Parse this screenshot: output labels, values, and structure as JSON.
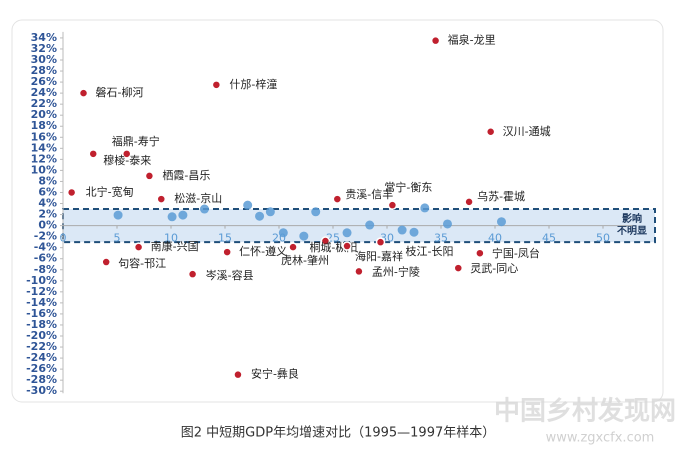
{
  "chart_data": {
    "type": "scatter",
    "caption": "图2  中短期GDP年均增速对比（1995—1997年样本）",
    "watermark": [
      "中国乡村发现网",
      "www.zgxcfx.com"
    ],
    "xlim": [
      0,
      52
    ],
    "ylim": [
      -30,
      34
    ],
    "xticks": [
      0,
      5,
      10,
      15,
      20,
      25,
      30,
      35,
      40,
      45,
      50
    ],
    "yticks": [
      {
        "value": 34,
        "label": "34%"
      },
      {
        "value": 32,
        "label": "32%"
      },
      {
        "value": 30,
        "label": "30%"
      },
      {
        "value": 28,
        "label": "28%"
      },
      {
        "value": 26,
        "label": "26%"
      },
      {
        "value": 24,
        "label": "24%"
      },
      {
        "value": 22,
        "label": "22%"
      },
      {
        "value": 20,
        "label": "20%"
      },
      {
        "value": 18,
        "label": "18%"
      },
      {
        "value": 16,
        "label": "16%"
      },
      {
        "value": 14,
        "label": "14%"
      },
      {
        "value": 12,
        "label": "12%"
      },
      {
        "value": 10,
        "label": "10%"
      },
      {
        "value": 8,
        "label": "8%"
      },
      {
        "value": 6,
        "label": "6%"
      },
      {
        "value": 4,
        "label": "4%"
      },
      {
        "value": 2,
        "label": "2%"
      },
      {
        "value": 0,
        "label": "0%"
      },
      {
        "value": -2,
        "label": "-2%"
      },
      {
        "value": -4,
        "label": "-4%"
      },
      {
        "value": -6,
        "label": "-6%"
      },
      {
        "value": -8,
        "label": "-8%"
      },
      {
        "value": -10,
        "label": "-10%"
      },
      {
        "value": -12,
        "label": "-12%"
      },
      {
        "value": -14,
        "label": "-14%"
      },
      {
        "value": -16,
        "label": "-16%"
      },
      {
        "value": -18,
        "label": "-18%"
      },
      {
        "value": -20,
        "label": "-20%"
      },
      {
        "value": -22,
        "label": "-22%"
      },
      {
        "value": -24,
        "label": "-24%"
      },
      {
        "value": -26,
        "label": "-26%"
      },
      {
        "value": -28,
        "label": "-28%"
      },
      {
        "value": -30,
        "label": "-30%"
      }
    ],
    "band": {
      "label": [
        "影响",
        "不明显"
      ],
      "range": [
        -3,
        3
      ],
      "color": "#dbe8f6"
    },
    "series": [
      {
        "color": "#c0202e",
        "x": [
          34.5,
          1.9,
          14.2,
          39.6,
          5.9,
          2.8,
          8,
          0.8,
          9.1,
          25.4,
          30.5,
          37.6,
          7,
          15.2,
          4,
          12,
          21.3,
          24.3,
          26.3,
          29.4,
          27.4,
          38.6,
          36.6,
          16.2
        ],
        "values": [
          33.5,
          24,
          25.5,
          17,
          13,
          13,
          9,
          6,
          4.8,
          4.8,
          3.7,
          4.3,
          -3.9,
          -4.8,
          -6.6,
          -8.8,
          -3.9,
          -2.8,
          -3.7,
          -3,
          -8.3,
          -5,
          -7.7,
          -27
        ],
        "labels": [
          "福泉-龙里",
          "磐石-柳河",
          "什邡-梓潼",
          "汉川-通城",
          "福鼎-寿宁",
          "穆棱-泰来",
          "栖霞-昌乐",
          "北宁-宽甸",
          "松滋-京山",
          "贵溪-信丰",
          "常宁-衡东",
          "乌苏-霍城",
          "南康-兴国",
          "仁怀-遵义",
          "句容-邗江",
          "岑溪-容县",
          "虎林-肇州",
          "桐城-枞阳",
          "海阳-嘉祥",
          "枝江-长阳",
          "孟州-宁陵",
          "宁国-凤台",
          "灵武-同心",
          "安宁-彝良"
        ]
      },
      {
        "color": "#5b9bd5",
        "x": [
          5.1,
          10.1,
          11.1,
          13.1,
          17.1,
          18.2,
          19.2,
          20.4,
          22.3,
          23.4,
          26.3,
          28.4,
          31.4,
          32.5,
          33.5,
          35.6,
          40.6
        ],
        "values": [
          1.9,
          1.6,
          1.9,
          3,
          3.7,
          1.7,
          2.5,
          -1.3,
          -1.9,
          2.5,
          -1.3,
          0.1,
          -0.8,
          -1.2,
          3.2,
          0.3,
          0.7
        ]
      }
    ]
  }
}
